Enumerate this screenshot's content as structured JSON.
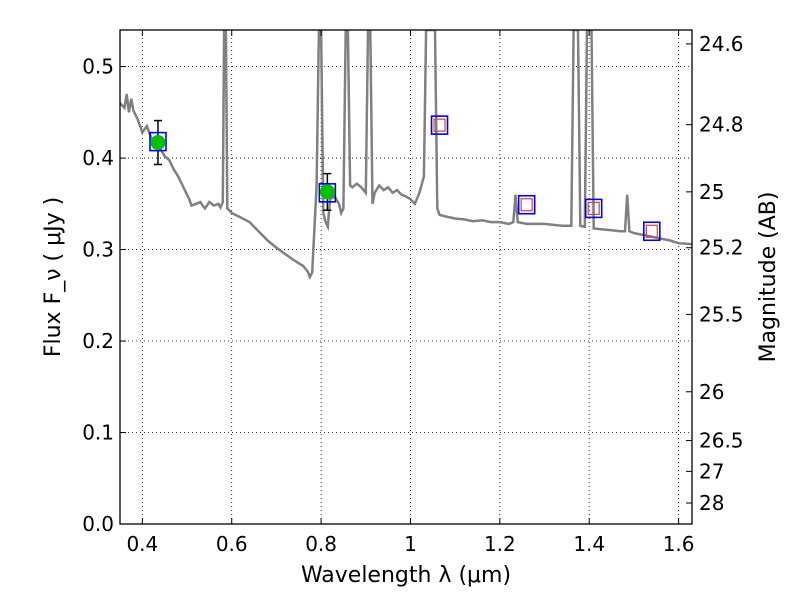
{
  "chart_data": {
    "type": "line",
    "xlabel": "Wavelength  λ (μm)",
    "ylabel": "Flux  F_ν  ( μJy )",
    "y2label": "Magnitude (AB)",
    "xlim": [
      0.35,
      1.63
    ],
    "ylim": [
      0.0,
      0.54
    ],
    "grid": true,
    "x_ticks": [
      0.4,
      0.6,
      0.8,
      1.0,
      1.2,
      1.4,
      1.6
    ],
    "x_tick_labels": [
      "0.4",
      "0.6",
      "0.8",
      "1",
      "1.2",
      "1.4",
      "1.6"
    ],
    "y_ticks": [
      0.0,
      0.1,
      0.2,
      0.3,
      0.4,
      0.5
    ],
    "y_tick_labels": [
      "0.0",
      "0.1",
      "0.2",
      "0.3",
      "0.4",
      "0.5"
    ],
    "y2_ticks": [
      {
        "mag": 24.6,
        "label": "24.6"
      },
      {
        "mag": 24.8,
        "label": "24.8"
      },
      {
        "mag": 25.0,
        "label": "25"
      },
      {
        "mag": 25.2,
        "label": "25.2"
      },
      {
        "mag": 25.5,
        "label": "25.5"
      },
      {
        "mag": 26.0,
        "label": "26"
      },
      {
        "mag": 26.5,
        "label": "26.5"
      },
      {
        "mag": 27.0,
        "label": "27"
      },
      {
        "mag": 28.0,
        "label": "28"
      }
    ],
    "model_spectrum": {
      "color": "#808080",
      "points": [
        [
          0.35,
          0.46
        ],
        [
          0.36,
          0.455
        ],
        [
          0.365,
          0.47
        ],
        [
          0.37,
          0.45
        ],
        [
          0.375,
          0.465
        ],
        [
          0.38,
          0.452
        ],
        [
          0.39,
          0.442
        ],
        [
          0.4,
          0.428
        ],
        [
          0.41,
          0.435
        ],
        [
          0.42,
          0.422
        ],
        [
          0.43,
          0.418
        ],
        [
          0.44,
          0.41
        ],
        [
          0.45,
          0.402
        ],
        [
          0.46,
          0.398
        ],
        [
          0.47,
          0.388
        ],
        [
          0.48,
          0.38
        ],
        [
          0.49,
          0.37
        ],
        [
          0.5,
          0.36
        ],
        [
          0.505,
          0.355
        ],
        [
          0.51,
          0.348
        ],
        [
          0.52,
          0.35
        ],
        [
          0.53,
          0.352
        ],
        [
          0.535,
          0.348
        ],
        [
          0.54,
          0.345
        ],
        [
          0.55,
          0.352
        ],
        [
          0.56,
          0.348
        ],
        [
          0.57,
          0.35
        ],
        [
          0.575,
          0.346
        ],
        [
          0.58,
          0.352
        ],
        [
          0.583,
          0.54
        ],
        [
          0.587,
          0.54
        ],
        [
          0.59,
          0.345
        ],
        [
          0.6,
          0.34
        ],
        [
          0.62,
          0.335
        ],
        [
          0.64,
          0.33
        ],
        [
          0.66,
          0.32
        ],
        [
          0.68,
          0.31
        ],
        [
          0.7,
          0.302
        ],
        [
          0.72,
          0.295
        ],
        [
          0.74,
          0.288
        ],
        [
          0.76,
          0.282
        ],
        [
          0.77,
          0.276
        ],
        [
          0.775,
          0.27
        ],
        [
          0.78,
          0.275
        ],
        [
          0.79,
          0.37
        ],
        [
          0.795,
          0.54
        ],
        [
          0.8,
          0.54
        ],
        [
          0.805,
          0.34
        ],
        [
          0.81,
          0.33
        ],
        [
          0.815,
          0.325
        ],
        [
          0.82,
          0.355
        ],
        [
          0.83,
          0.358
        ],
        [
          0.84,
          0.35
        ],
        [
          0.845,
          0.34
        ],
        [
          0.85,
          0.345
        ],
        [
          0.855,
          0.54
        ],
        [
          0.86,
          0.54
        ],
        [
          0.865,
          0.37
        ],
        [
          0.87,
          0.368
        ],
        [
          0.88,
          0.372
        ],
        [
          0.89,
          0.368
        ],
        [
          0.9,
          0.362
        ],
        [
          0.905,
          0.54
        ],
        [
          0.91,
          0.54
        ],
        [
          0.915,
          0.35
        ],
        [
          0.92,
          0.362
        ],
        [
          0.93,
          0.37
        ],
        [
          0.94,
          0.365
        ],
        [
          0.95,
          0.368
        ],
        [
          0.96,
          0.362
        ],
        [
          0.97,
          0.365
        ],
        [
          0.98,
          0.36
        ],
        [
          0.99,
          0.358
        ],
        [
          1.0,
          0.355
        ],
        [
          1.01,
          0.35
        ],
        [
          1.02,
          0.362
        ],
        [
          1.03,
          0.38
        ],
        [
          1.035,
          0.54
        ],
        [
          1.055,
          0.54
        ],
        [
          1.06,
          0.345
        ],
        [
          1.065,
          0.338
        ],
        [
          1.08,
          0.336
        ],
        [
          1.1,
          0.334
        ],
        [
          1.12,
          0.333
        ],
        [
          1.14,
          0.331
        ],
        [
          1.16,
          0.332
        ],
        [
          1.18,
          0.33
        ],
        [
          1.2,
          0.33
        ],
        [
          1.22,
          0.328
        ],
        [
          1.23,
          0.33
        ],
        [
          1.235,
          0.36
        ],
        [
          1.24,
          0.33
        ],
        [
          1.26,
          0.328
        ],
        [
          1.28,
          0.328
        ],
        [
          1.3,
          0.328
        ],
        [
          1.32,
          0.327
        ],
        [
          1.34,
          0.326
        ],
        [
          1.36,
          0.326
        ],
        [
          1.365,
          0.54
        ],
        [
          1.375,
          0.54
        ],
        [
          1.38,
          0.326
        ],
        [
          1.39,
          0.325
        ],
        [
          1.395,
          0.54
        ],
        [
          1.405,
          0.54
        ],
        [
          1.41,
          0.323
        ],
        [
          1.43,
          0.322
        ],
        [
          1.45,
          0.321
        ],
        [
          1.47,
          0.32
        ],
        [
          1.48,
          0.32
        ],
        [
          1.485,
          0.36
        ],
        [
          1.49,
          0.32
        ],
        [
          1.5,
          0.318
        ],
        [
          1.52,
          0.316
        ],
        [
          1.54,
          0.314
        ],
        [
          1.56,
          0.312
        ],
        [
          1.58,
          0.31
        ],
        [
          1.6,
          0.307
        ],
        [
          1.63,
          0.306
        ]
      ]
    },
    "observed_photometry": [
      {
        "x": 0.435,
        "y": 0.417,
        "yerr": 0.024,
        "color": "#00c000"
      },
      {
        "x": 0.814,
        "y": 0.363,
        "yerr": 0.02,
        "color": "#00c000"
      }
    ],
    "synthetic_photometry": [
      {
        "x": 0.435,
        "y": 0.418,
        "has_inner": false
      },
      {
        "x": 0.814,
        "y": 0.362,
        "has_inner": false
      },
      {
        "x": 1.065,
        "y": 0.436,
        "has_inner": true
      },
      {
        "x": 1.26,
        "y": 0.349,
        "has_inner": true
      },
      {
        "x": 1.41,
        "y": 0.345,
        "has_inner": true
      },
      {
        "x": 1.54,
        "y": 0.32,
        "has_inner": true
      }
    ],
    "colors": {
      "model": "#808080",
      "marker_outer": "#0000ff",
      "marker_inner": "#cc4444",
      "errorbar": "#000000"
    }
  }
}
